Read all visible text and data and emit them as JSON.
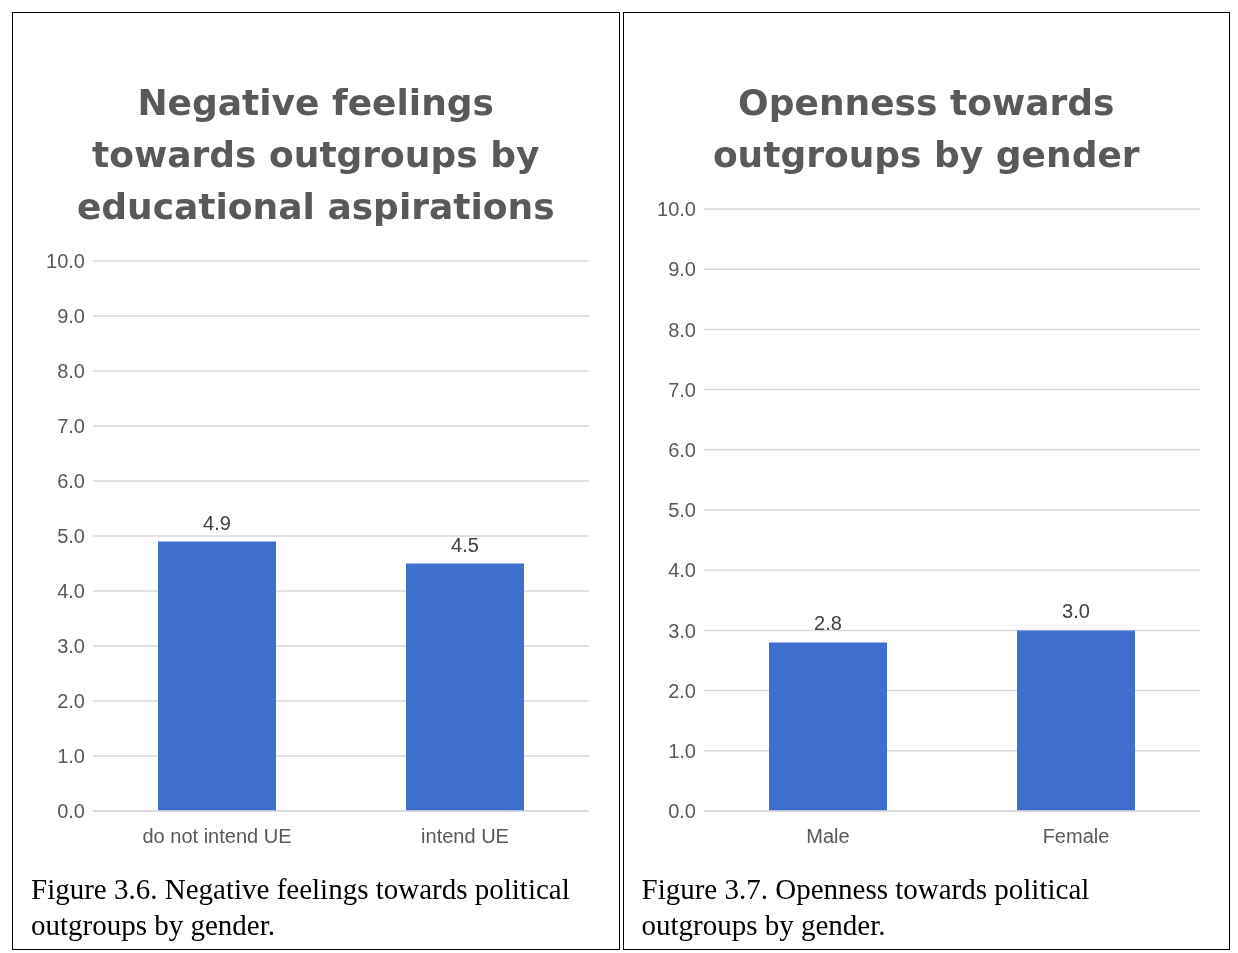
{
  "chart_data": [
    {
      "type": "bar",
      "title": "Negative feelings towards outgroups by educational aspirations",
      "categories": [
        "do not intend UE",
        "intend UE"
      ],
      "values": [
        4.9,
        4.5
      ],
      "value_labels": [
        "4.9",
        "4.5"
      ],
      "color": "#3f6fcf",
      "ylim": [
        0,
        10
      ],
      "yticks": [
        {
          "value": 0,
          "label": "0.0"
        },
        {
          "value": 1,
          "label": "1.0"
        },
        {
          "value": 2,
          "label": "2.0"
        },
        {
          "value": 3,
          "label": "3.0"
        },
        {
          "value": 4,
          "label": "4.0"
        },
        {
          "value": 5,
          "label": "5.0"
        },
        {
          "value": 6,
          "label": "6.0"
        },
        {
          "value": 7,
          "label": "7.0"
        },
        {
          "value": 8,
          "label": "8.0"
        },
        {
          "value": 9,
          "label": "9.0"
        },
        {
          "value": 10,
          "label": "10.0"
        }
      ],
      "grid": "y",
      "annotations": [
        "Figure 3.6. Negative feelings towards political outgroups by gender."
      ]
    },
    {
      "type": "bar",
      "title": "Openness towards outgroups by gender",
      "categories": [
        "Male",
        "Female"
      ],
      "values": [
        2.8,
        3.0
      ],
      "value_labels": [
        "2.8",
        "3.0"
      ],
      "color": "#3f6fcf",
      "ylim": [
        0,
        10
      ],
      "yticks": [
        {
          "value": 0,
          "label": "0.0"
        },
        {
          "value": 1,
          "label": "1.0"
        },
        {
          "value": 2,
          "label": "2.0"
        },
        {
          "value": 3,
          "label": "3.0"
        },
        {
          "value": 4,
          "label": "4.0"
        },
        {
          "value": 5,
          "label": "5.0"
        },
        {
          "value": 6,
          "label": "6.0"
        },
        {
          "value": 7,
          "label": "7.0"
        },
        {
          "value": 8,
          "label": "8.0"
        },
        {
          "value": 9,
          "label": "9.0"
        },
        {
          "value": 10,
          "label": "10.0"
        }
      ],
      "grid": "y",
      "annotations": [
        "Figure 3.7. Openness towards political outgroups by gender."
      ]
    }
  ]
}
